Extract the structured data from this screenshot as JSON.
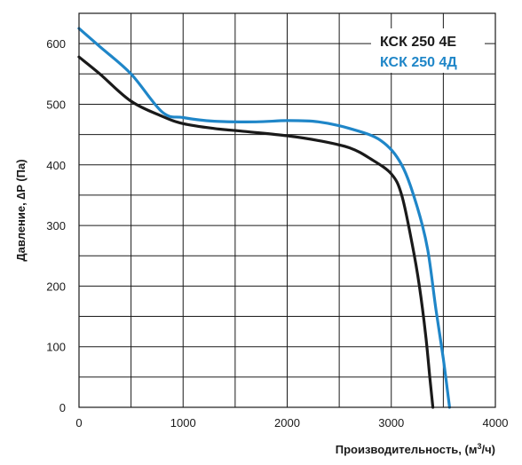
{
  "chart_data": {
    "type": "line",
    "xlabel_main": "Производительность, (м",
    "xlabel_sup": "3",
    "xlabel_end": "/ч)",
    "ylabel": "Давление, ∆P (Па)",
    "xlim": [
      0,
      4000
    ],
    "ylim": [
      0,
      650
    ],
    "x_ticks": [
      0,
      1000,
      2000,
      3000,
      4000
    ],
    "y_ticks": [
      0,
      100,
      200,
      300,
      400,
      500,
      600
    ],
    "x_grid": [
      0,
      500,
      1000,
      1500,
      2000,
      2500,
      3000,
      3500,
      4000
    ],
    "y_grid": [
      0,
      50,
      100,
      150,
      200,
      250,
      300,
      350,
      400,
      450,
      500,
      550,
      600,
      650
    ],
    "grid": true,
    "legend_position": "top-right",
    "series": [
      {
        "name": "КСК 250 4Е",
        "color": "#1a1a1a",
        "points": [
          [
            0,
            578
          ],
          [
            200,
            550
          ],
          [
            500,
            505
          ],
          [
            800,
            480
          ],
          [
            1000,
            468
          ],
          [
            1300,
            460
          ],
          [
            1600,
            455
          ],
          [
            2000,
            448
          ],
          [
            2300,
            440
          ],
          [
            2600,
            428
          ],
          [
            2800,
            410
          ],
          [
            3000,
            385
          ],
          [
            3100,
            350
          ],
          [
            3200,
            270
          ],
          [
            3270,
            200
          ],
          [
            3330,
            120
          ],
          [
            3370,
            50
          ],
          [
            3400,
            0
          ]
        ]
      },
      {
        "name": "КСК 250 4Д",
        "color": "#1f86c8",
        "points": [
          [
            0,
            625
          ],
          [
            200,
            595
          ],
          [
            500,
            550
          ],
          [
            800,
            487
          ],
          [
            1000,
            478
          ],
          [
            1300,
            472
          ],
          [
            1700,
            471
          ],
          [
            2000,
            473
          ],
          [
            2300,
            471
          ],
          [
            2600,
            460
          ],
          [
            2900,
            440
          ],
          [
            3100,
            400
          ],
          [
            3250,
            330
          ],
          [
            3350,
            260
          ],
          [
            3430,
            160
          ],
          [
            3500,
            80
          ],
          [
            3560,
            0
          ]
        ]
      }
    ]
  }
}
